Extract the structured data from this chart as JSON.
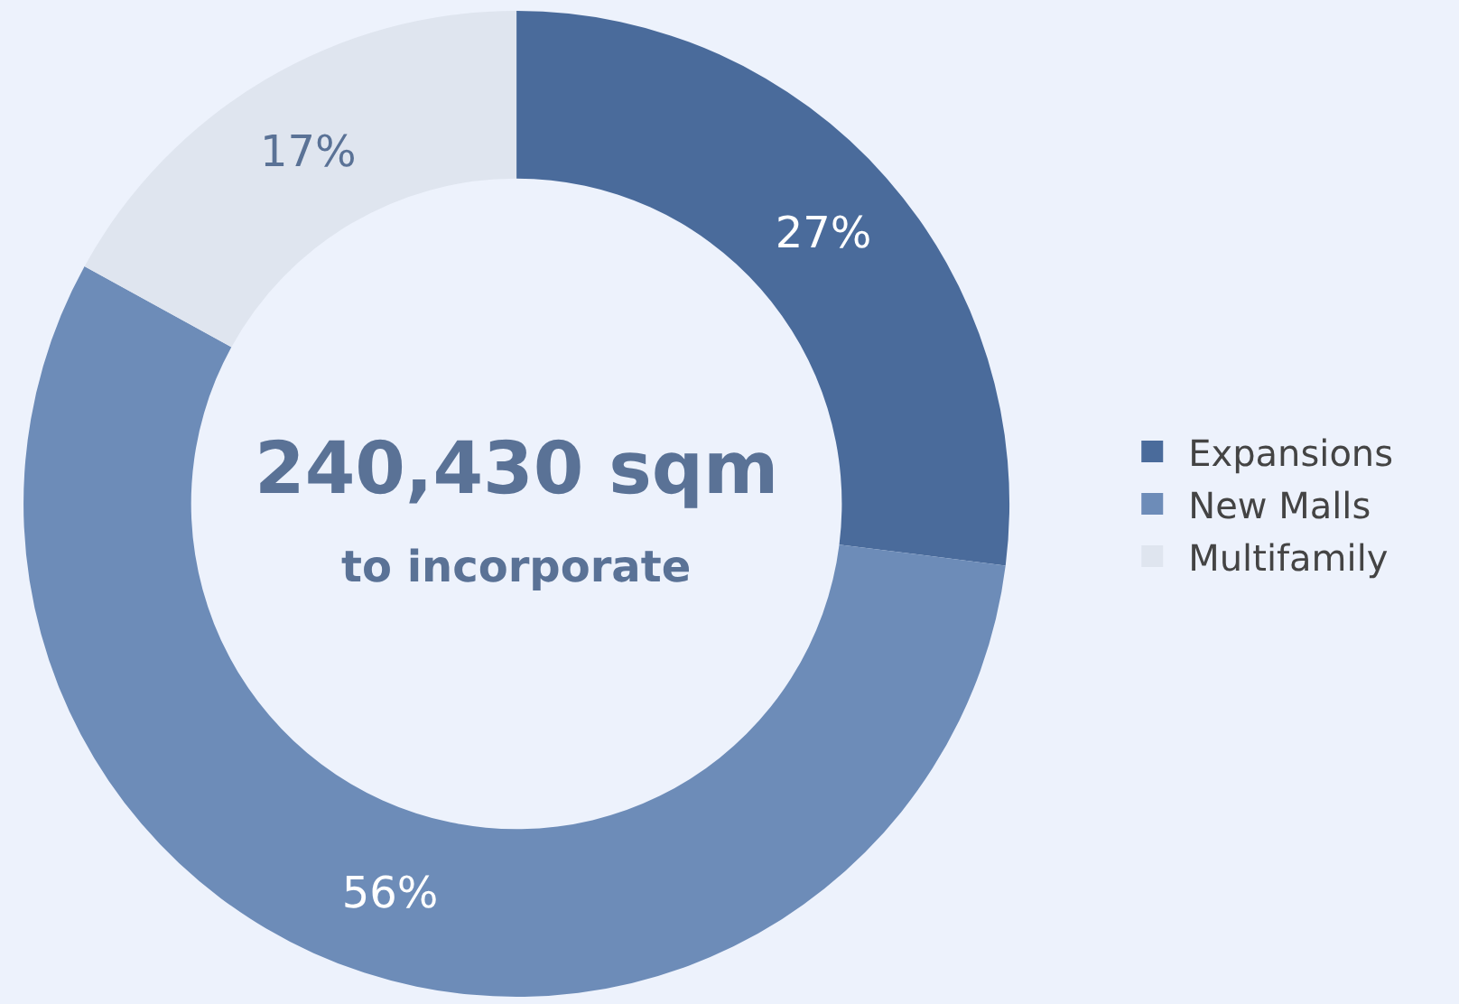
{
  "chart_data": {
    "type": "donut",
    "categories": [
      "Expansions",
      "New Malls",
      "Multifamily"
    ],
    "values": [
      27,
      56,
      17
    ],
    "colors": [
      "#4a6b9b",
      "#6d8cb8",
      "#dfe5ef"
    ],
    "value_labels": [
      "27%",
      "56%",
      "17%"
    ],
    "annotations": [
      "240,430 sqm",
      "to incorporate"
    ],
    "legend": "right"
  }
}
